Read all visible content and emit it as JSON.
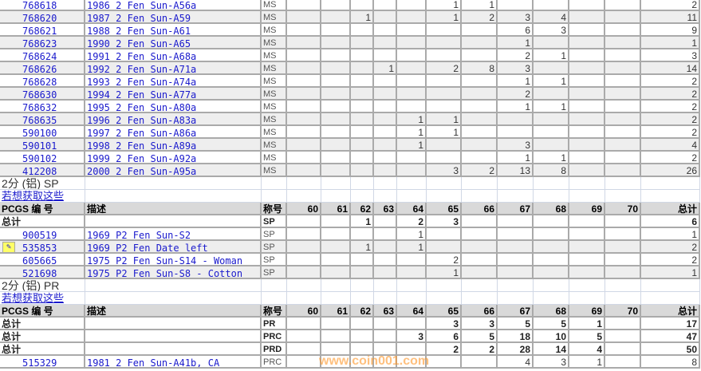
{
  "grades": [
    "60",
    "61",
    "62",
    "63",
    "64",
    "65",
    "66",
    "67",
    "68",
    "69",
    "70"
  ],
  "ms_rows": [
    {
      "id": "768618",
      "desc": "1986 2 Fen Sun-A56a",
      "des": "MS",
      "counts": [
        null,
        null,
        null,
        null,
        null,
        1,
        1,
        null,
        null,
        null,
        null
      ],
      "total": 2
    },
    {
      "id": "768620",
      "desc": "1987 2 Fen Sun-A59",
      "des": "MS",
      "counts": [
        null,
        null,
        1,
        null,
        null,
        1,
        2,
        3,
        4,
        null,
        null
      ],
      "total": 11
    },
    {
      "id": "768621",
      "desc": "1988 2 Fen Sun-A61",
      "des": "MS",
      "counts": [
        null,
        null,
        null,
        null,
        null,
        null,
        null,
        6,
        3,
        null,
        null
      ],
      "total": 9
    },
    {
      "id": "768623",
      "desc": "1990 2 Fen Sun-A65",
      "des": "MS",
      "counts": [
        null,
        null,
        null,
        null,
        null,
        null,
        null,
        1,
        null,
        null,
        null
      ],
      "total": 1
    },
    {
      "id": "768624",
      "desc": "1991 2 Fen Sun-A68a",
      "des": "MS",
      "counts": [
        null,
        null,
        null,
        null,
        null,
        null,
        null,
        2,
        1,
        null,
        null
      ],
      "total": 3
    },
    {
      "id": "768626",
      "desc": "1992 2 Fen Sun-A71a",
      "des": "MS",
      "counts": [
        null,
        null,
        null,
        1,
        null,
        2,
        8,
        3,
        null,
        null,
        null
      ],
      "total": 14
    },
    {
      "id": "768628",
      "desc": "1993 2 Fen Sun-A74a",
      "des": "MS",
      "counts": [
        null,
        null,
        null,
        null,
        null,
        null,
        null,
        1,
        1,
        null,
        null
      ],
      "total": 2
    },
    {
      "id": "768630",
      "desc": "1994 2 Fen Sun-A77a",
      "des": "MS",
      "counts": [
        null,
        null,
        null,
        null,
        null,
        null,
        null,
        2,
        null,
        null,
        null
      ],
      "total": 2
    },
    {
      "id": "768632",
      "desc": "1995 2 Fen Sun-A80a",
      "des": "MS",
      "counts": [
        null,
        null,
        null,
        null,
        null,
        null,
        null,
        1,
        1,
        null,
        null
      ],
      "total": 2
    },
    {
      "id": "768635",
      "desc": "1996 2 Fen Sun-A83a",
      "des": "MS",
      "counts": [
        null,
        null,
        null,
        null,
        1,
        1,
        null,
        null,
        null,
        null,
        null
      ],
      "total": 2
    },
    {
      "id": "590100",
      "desc": "1997 2 Fen Sun-A86a",
      "des": "MS",
      "counts": [
        null,
        null,
        null,
        null,
        1,
        1,
        null,
        null,
        null,
        null,
        null
      ],
      "total": 2
    },
    {
      "id": "590101",
      "desc": "1998 2 Fen Sun-A89a",
      "des": "MS",
      "counts": [
        null,
        null,
        null,
        null,
        1,
        null,
        null,
        3,
        null,
        null,
        null
      ],
      "total": 4
    },
    {
      "id": "590102",
      "desc": "1999 2 Fen Sun-A92a",
      "des": "MS",
      "counts": [
        null,
        null,
        null,
        null,
        null,
        null,
        null,
        1,
        1,
        null,
        null
      ],
      "total": 2
    },
    {
      "id": "412208",
      "desc": "2000 2 Fen Sun-A95a",
      "des": "MS",
      "counts": [
        null,
        null,
        null,
        null,
        null,
        3,
        2,
        13,
        8,
        null,
        null
      ],
      "total": 26
    }
  ],
  "sections": [
    {
      "title": "2分 (铝) SP",
      "link": "若想获取这些",
      "header": {
        "id": "PCGS 编 号",
        "desc": "描述",
        "des": "称号",
        "total": "总计"
      },
      "totals": [
        {
          "label": "总计",
          "des": "SP",
          "counts": [
            null,
            null,
            1,
            null,
            2,
            3,
            null,
            null,
            null,
            null,
            null
          ],
          "total": 6
        }
      ],
      "rows": [
        {
          "id": "900519",
          "desc": "1969 P2 Fen Sun-S2",
          "des": "SP",
          "counts": [
            null,
            null,
            null,
            null,
            1,
            null,
            null,
            null,
            null,
            null,
            null
          ],
          "total": 1
        },
        {
          "id": "535853",
          "desc": "1969 P2 Fen Date left",
          "des": "SP",
          "icon": "note-icon",
          "counts": [
            null,
            null,
            1,
            null,
            1,
            null,
            null,
            null,
            null,
            null,
            null
          ],
          "total": 2
        },
        {
          "id": "605665",
          "desc": "1975 P2 Fen Sun-S14 - Woman",
          "des": "SP",
          "counts": [
            null,
            null,
            null,
            null,
            null,
            2,
            null,
            null,
            null,
            null,
            null
          ],
          "total": 2
        },
        {
          "id": "521698",
          "desc": "1975 P2 Fen Sun-S8 - Cotton",
          "des": "SP",
          "counts": [
            null,
            null,
            null,
            null,
            null,
            1,
            null,
            null,
            null,
            null,
            null
          ],
          "total": 1
        }
      ]
    },
    {
      "title": "2分 (铝) PR",
      "link": "若想获取这些",
      "header": {
        "id": "PCGS 编 号",
        "desc": "描述",
        "des": "称号",
        "total": "总计"
      },
      "totals": [
        {
          "label": "总计",
          "des": "PR",
          "counts": [
            null,
            null,
            null,
            null,
            null,
            3,
            3,
            5,
            5,
            1,
            null
          ],
          "total": 17
        },
        {
          "label": "总计",
          "des": "PRC",
          "counts": [
            null,
            null,
            null,
            null,
            3,
            6,
            5,
            18,
            10,
            5,
            null
          ],
          "total": 47
        },
        {
          "label": "总计",
          "des": "PRD",
          "counts": [
            null,
            null,
            null,
            null,
            null,
            2,
            2,
            28,
            14,
            4,
            null
          ],
          "total": 50
        }
      ],
      "rows": [
        {
          "id": "515329",
          "desc": "1981 2 Fen Sun-A41b, CA",
          "des": "PRC",
          "counts": [
            null,
            null,
            null,
            null,
            null,
            null,
            null,
            4,
            3,
            1,
            null
          ],
          "total": 8
        }
      ]
    }
  ],
  "watermark": "www.coin001.com"
}
